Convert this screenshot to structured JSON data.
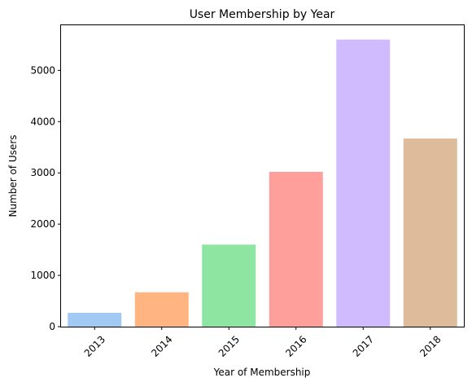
{
  "chart_data": {
    "type": "bar",
    "title": "User Membership by Year",
    "xlabel": "Year of Membership",
    "ylabel": "Number of Users",
    "categories": [
      "2013",
      "2014",
      "2015",
      "2016",
      "2017",
      "2018"
    ],
    "values": [
      270,
      670,
      1600,
      3020,
      5600,
      3670
    ],
    "colors": [
      "#a1c9f4",
      "#ffb482",
      "#8de5a1",
      "#ff9f9b",
      "#d0bbff",
      "#debb9b"
    ],
    "ylim": [
      0,
      5880
    ],
    "yticks": [
      0,
      1000,
      2000,
      3000,
      4000,
      5000
    ],
    "grid": false,
    "legend": "none"
  }
}
